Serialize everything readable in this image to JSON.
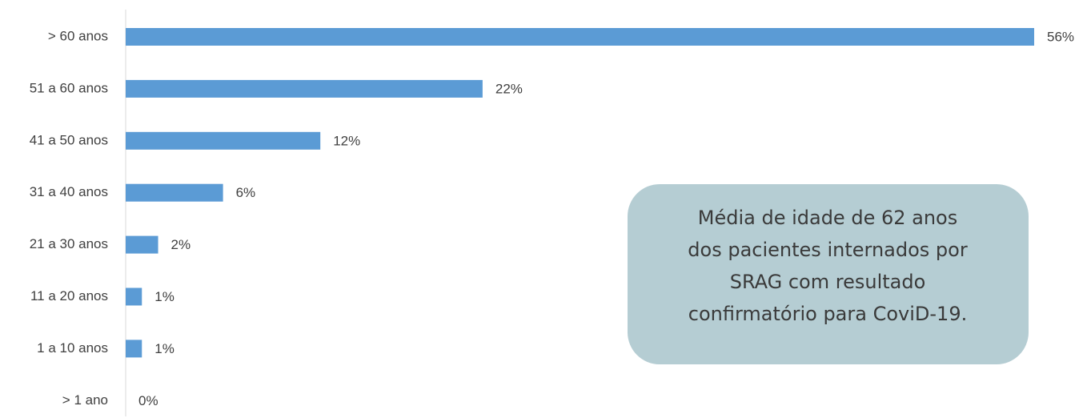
{
  "chart_data": {
    "type": "barh",
    "categories": [
      "> 60 anos",
      "51 a 60 anos",
      "41 a 50 anos",
      "31 a 40 anos",
      "21 a 30 anos",
      "11 a 20 anos",
      "1 a 10 anos",
      "> 1 ano"
    ],
    "values": [
      56,
      22,
      12,
      6,
      2,
      1,
      1,
      0
    ],
    "value_labels": [
      "56%",
      "22%",
      "12%",
      "6%",
      "2%",
      "1%",
      "1%",
      "0%"
    ],
    "color": "#5b9bd5",
    "annotation": [
      "Média de idade de 62 anos",
      "dos pacientes internados por",
      "SRAG com resultado",
      "confirmatório para CoviD-19."
    ]
  }
}
